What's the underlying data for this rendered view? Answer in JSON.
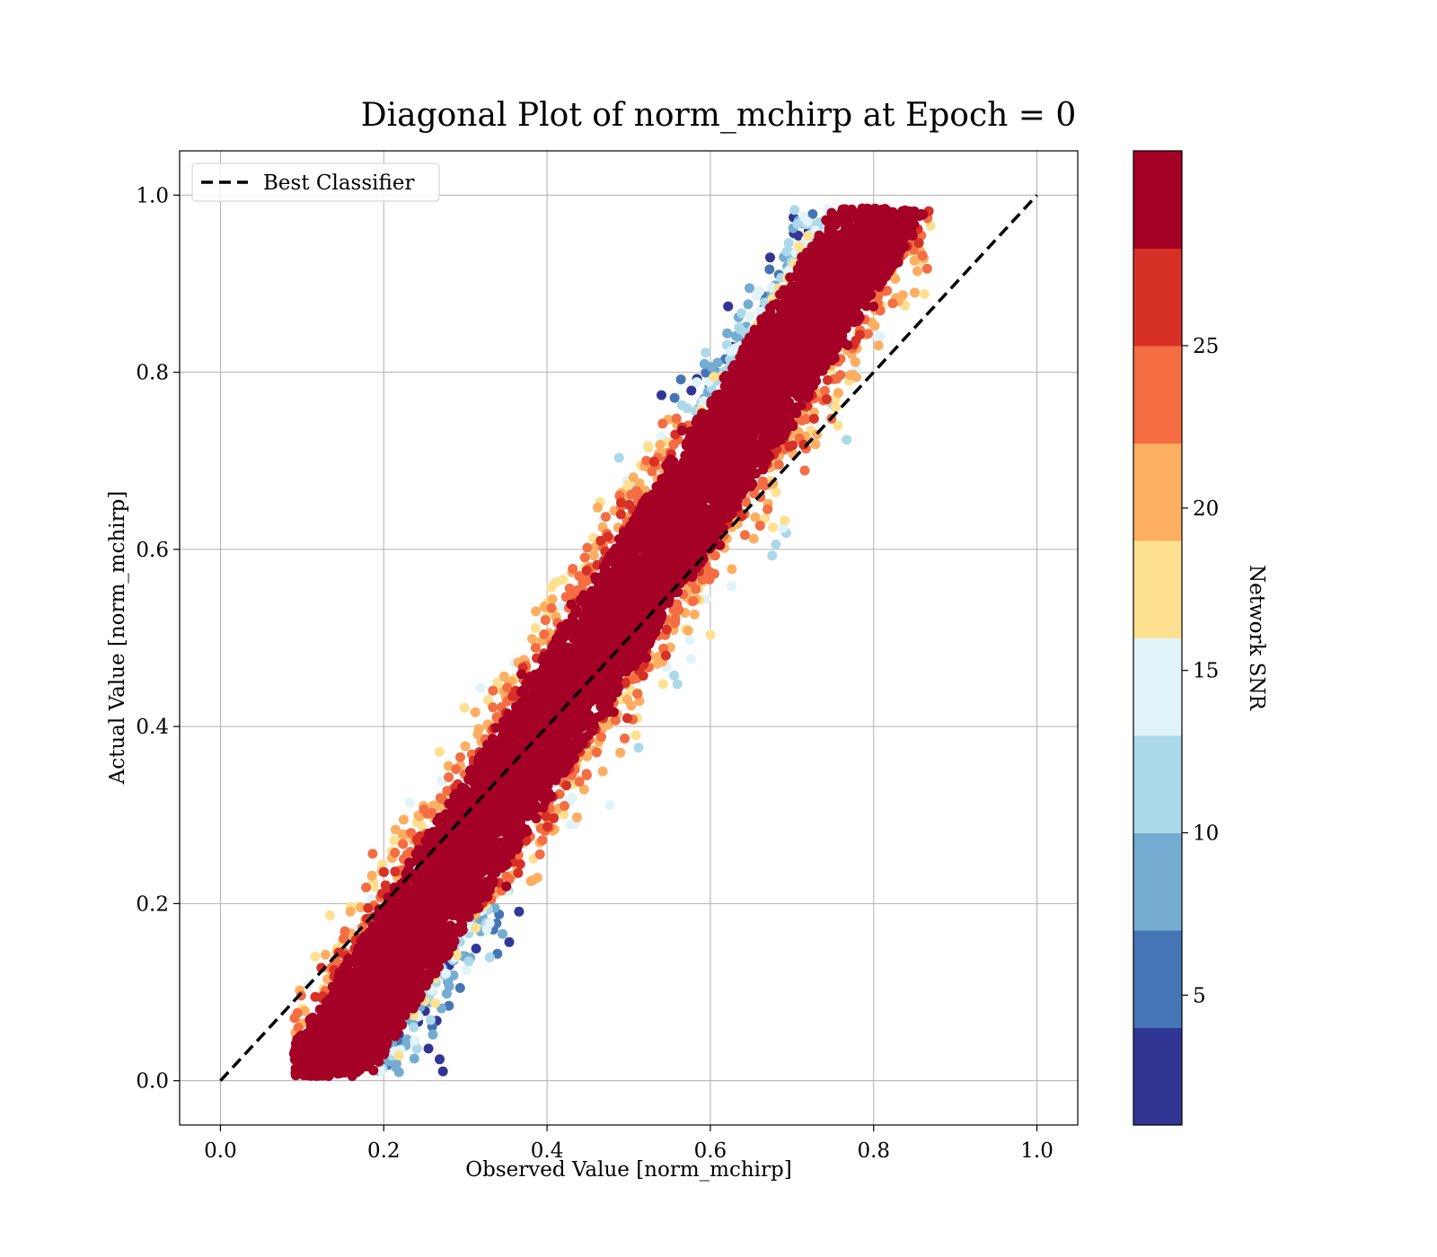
{
  "chart_data": {
    "type": "scatter",
    "title": "Diagonal Plot of norm_mchirp at Epoch = 0",
    "xlabel": "Observed Value [norm_mchirp]",
    "ylabel": "Actual Value [norm_mchirp]",
    "xlim": [
      -0.05,
      1.05
    ],
    "ylim": [
      -0.05,
      1.05
    ],
    "xticks": [
      "0.0",
      "0.2",
      "0.4",
      "0.6",
      "0.8",
      "1.0"
    ],
    "xtick_values": [
      0.0,
      0.2,
      0.4,
      0.6,
      0.8,
      1.0
    ],
    "yticks": [
      "0.0",
      "0.2",
      "0.4",
      "0.6",
      "0.8",
      "1.0"
    ],
    "ytick_values": [
      0.0,
      0.2,
      0.4,
      0.6,
      0.8,
      1.0
    ],
    "grid": true,
    "legend": {
      "placement": "upper-left",
      "entries": [
        {
          "label": "Best Classifier",
          "style": "dashed",
          "color": "#000000"
        }
      ]
    },
    "reference_line": {
      "name": "Best Classifier",
      "x": [
        0.0,
        1.0
      ],
      "y": [
        0.0,
        1.0
      ]
    },
    "colorbar": {
      "label": "Network SNR",
      "range": [
        1,
        31
      ],
      "tick_labels": [
        "5",
        "10",
        "15",
        "20",
        "25"
      ],
      "tick_values": [
        5,
        10,
        15,
        20,
        25
      ],
      "colors": [
        "#313695",
        "#4575b4",
        "#74add1",
        "#abd9e9",
        "#e0f3f8",
        "#fee090",
        "#fdae61",
        "#f46d43",
        "#d73027",
        "#a50026"
      ]
    },
    "scatter_description": {
      "points": 9000,
      "band_halfwidth": 0.11,
      "high_snr_color": "#a50026"
    }
  }
}
